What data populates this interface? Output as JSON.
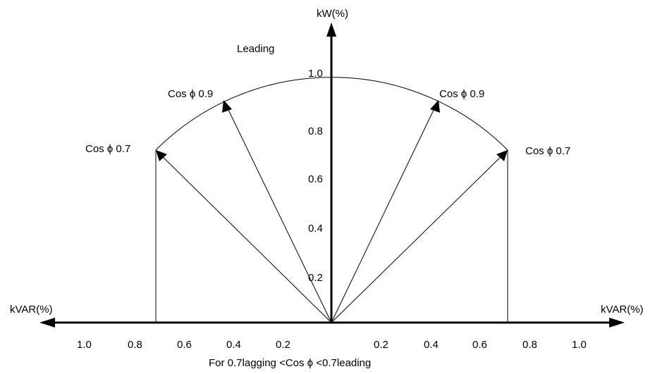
{
  "axes": {
    "y_label": "kW(%)",
    "x_left_label": "kVAR(%)",
    "x_right_label": "kVAR(%)"
  },
  "region_label": "Leading",
  "y_ticks": [
    "1.0",
    "0.8",
    "0.6",
    "0.4",
    "0.2"
  ],
  "x_ticks_left": [
    "1.0",
    "0.8",
    "0.6",
    "0.4",
    "0.2"
  ],
  "x_ticks_right": [
    "0.2",
    "0.4",
    "0.6",
    "0.8",
    "1.0"
  ],
  "vectors": {
    "left_09": "Cos ϕ  0.9",
    "left_07": "Cos ϕ  0.7",
    "right_09": "Cos ϕ  0.9",
    "right_07": "Cos ϕ  0.7"
  },
  "caption": "For 0.7lagging <Cos ϕ <0.7leading",
  "colors": {
    "ink": "#000000",
    "background": "#ffffff"
  }
}
